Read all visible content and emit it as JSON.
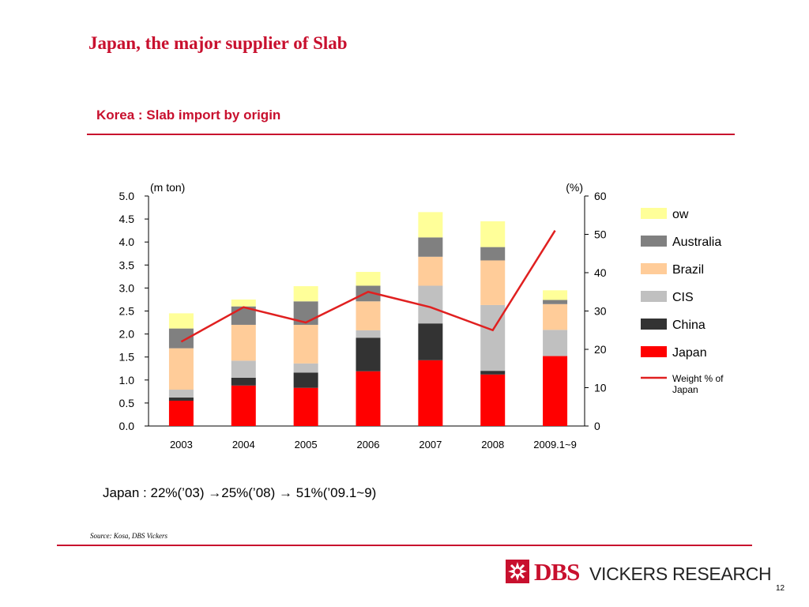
{
  "page": {
    "title": "Japan, the major supplier of Slab",
    "subtitle": "Korea : Slab import by origin",
    "note": "Japan : 22%(’03) →25%(’08) → 51%(’09.1~9)",
    "source": "Source: Kosa, DBS Vickers",
    "page_number": "12"
  },
  "brand": {
    "name": "DBS",
    "tagline": "VICKERS RESEARCH",
    "color": "#c8102e"
  },
  "chart_data": {
    "type": "bar",
    "stacked": true,
    "categories": [
      "2003",
      "2004",
      "2005",
      "2006",
      "2007",
      "2008",
      "2009.1~9"
    ],
    "ylabel": "(m ton)",
    "y2label": "(%)",
    "ylim": [
      0,
      5
    ],
    "y2lim": [
      0,
      60
    ],
    "yticks": [
      "0.0",
      "0.5",
      "1.0",
      "1.5",
      "2.0",
      "2.5",
      "3.0",
      "3.5",
      "4.0",
      "4.5",
      "5.0"
    ],
    "y2ticks": [
      "0",
      "10",
      "20",
      "30",
      "40",
      "50",
      "60"
    ],
    "grid": false,
    "legend_position": "right",
    "series": [
      {
        "name": "Japan",
        "color": "#ff0000",
        "values": [
          0.55,
          0.88,
          0.83,
          1.19,
          1.43,
          1.12,
          1.52
        ]
      },
      {
        "name": "China",
        "color": "#333333",
        "values": [
          0.07,
          0.17,
          0.33,
          0.73,
          0.8,
          0.08,
          0.0
        ]
      },
      {
        "name": "CIS",
        "color": "#c0c0c0",
        "values": [
          0.17,
          0.37,
          0.2,
          0.16,
          0.82,
          1.43,
          0.57
        ]
      },
      {
        "name": "Brazil",
        "color": "#ffcc99",
        "values": [
          0.9,
          0.78,
          0.84,
          0.63,
          0.63,
          0.97,
          0.56
        ]
      },
      {
        "name": "Australia",
        "color": "#808080",
        "values": [
          0.43,
          0.4,
          0.51,
          0.34,
          0.42,
          0.29,
          0.09
        ]
      },
      {
        "name": "ow",
        "color": "#ffff99",
        "values": [
          0.33,
          0.15,
          0.33,
          0.3,
          0.55,
          0.56,
          0.21
        ]
      }
    ],
    "line_series": {
      "name": "Weight % of Japan",
      "color": "#e02020",
      "axis": "right",
      "values": [
        22,
        31,
        27,
        35,
        31,
        25,
        51
      ]
    }
  }
}
